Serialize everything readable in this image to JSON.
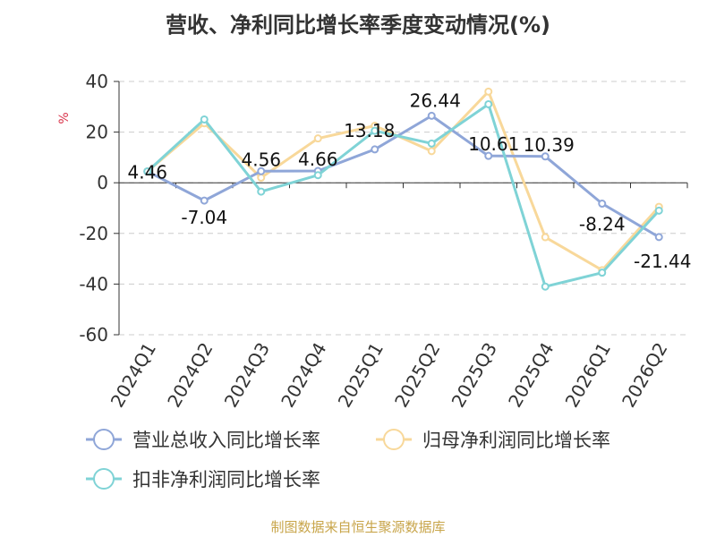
{
  "header": {
    "title": "营收、净利同比增长率季度变动情况(%)"
  },
  "footer": {
    "source": "制图数据来自恒生聚源数据库"
  },
  "chart_data": {
    "type": "line",
    "title": "营收、净利同比增长率季度变动情况(%)",
    "ylabel": "%",
    "xlabel": "",
    "categories": [
      "2024Q1",
      "2024Q2",
      "2024Q3",
      "2024Q4",
      "2025Q1",
      "2025Q2",
      "2025Q3",
      "2025Q4",
      "2026Q1",
      "2026Q2"
    ],
    "ylim": [
      -60,
      40
    ],
    "yticks": [
      40,
      20,
      0,
      -20,
      -40,
      -60
    ],
    "grid": true,
    "legend_position": "bottom",
    "series": [
      {
        "name": "营业总收入同比增长率",
        "color": "#8fa6d8",
        "values": [
          4.46,
          -7.04,
          4.56,
          4.66,
          13.18,
          26.44,
          10.61,
          10.39,
          -8.24,
          -21.44
        ],
        "labels": [
          "4.46",
          "-7.04",
          "4.56",
          "4.66",
          "13.18",
          "26.44",
          "10.61",
          "10.39",
          "-8.24",
          "-21.44"
        ]
      },
      {
        "name": "归母净利润同比增长率",
        "color": "#f8d89a",
        "values": [
          4.5,
          23.5,
          2.0,
          17.5,
          22.5,
          12.5,
          36.0,
          -21.5,
          -34.5,
          -9.5
        ]
      },
      {
        "name": "扣非净利润同比增长率",
        "color": "#7fd3d6",
        "values": [
          4.5,
          25.0,
          -3.5,
          3.0,
          20.5,
          15.5,
          31.0,
          -41.0,
          -35.5,
          -11.0
        ]
      }
    ]
  }
}
